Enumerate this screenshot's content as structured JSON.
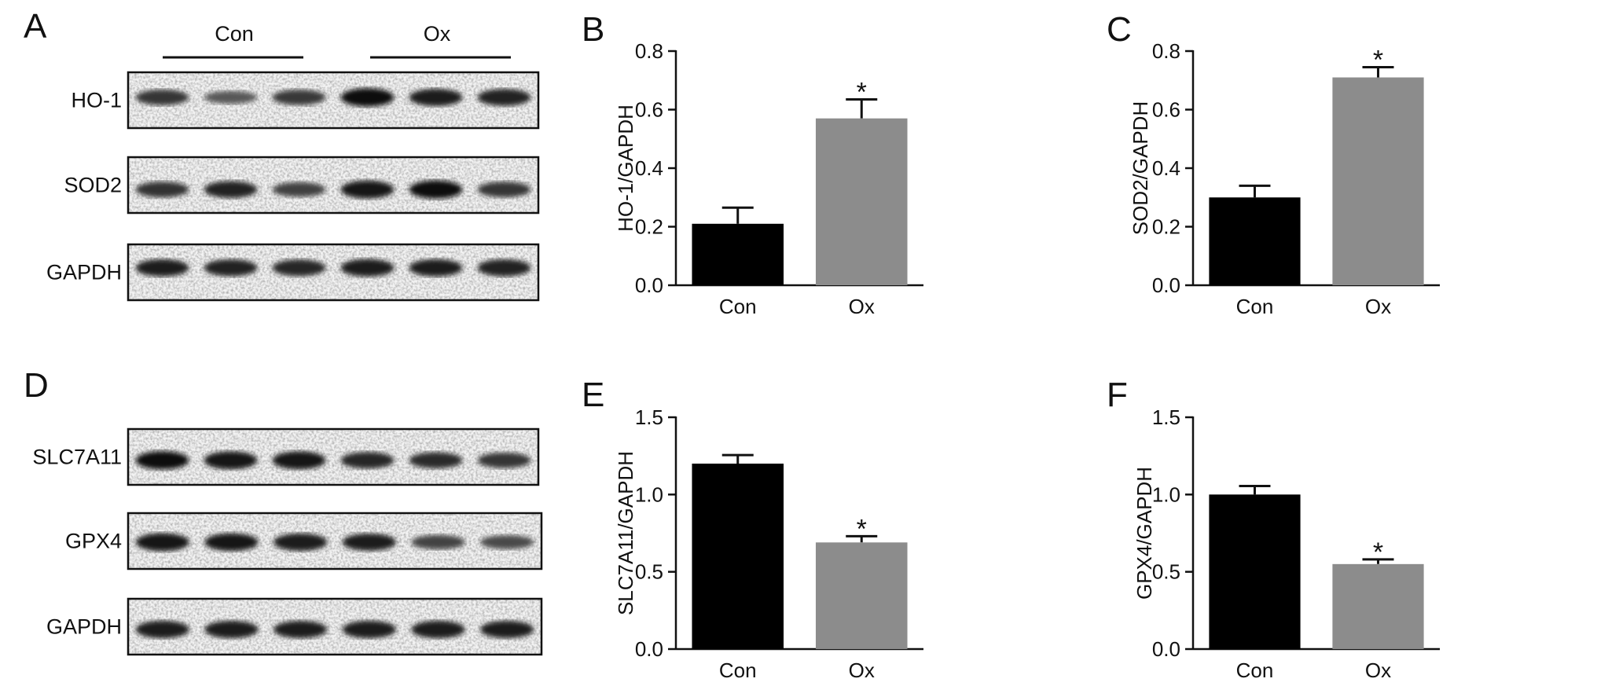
{
  "panels": {
    "A": {
      "letter": "A",
      "groups": [
        "Con",
        "Ox"
      ],
      "rows": [
        {
          "label": "HO-1",
          "intensity": [
            0.7,
            0.45,
            0.68,
            0.95,
            0.85,
            0.82
          ]
        },
        {
          "label": "SOD2",
          "intensity": [
            0.72,
            0.82,
            0.62,
            0.92,
            0.95,
            0.7
          ]
        },
        {
          "label": "GAPDH",
          "intensity": [
            0.85,
            0.82,
            0.8,
            0.88,
            0.85,
            0.84
          ]
        }
      ]
    },
    "D": {
      "letter": "D",
      "rows": [
        {
          "label": "SLC7A11",
          "intensity": [
            0.95,
            0.92,
            0.92,
            0.8,
            0.76,
            0.7
          ]
        },
        {
          "label": "GPX4",
          "intensity": [
            0.92,
            0.9,
            0.88,
            0.85,
            0.6,
            0.55
          ]
        },
        {
          "label": "GAPDH",
          "intensity": [
            0.88,
            0.88,
            0.86,
            0.88,
            0.88,
            0.86
          ]
        }
      ]
    }
  },
  "chart_data": [
    {
      "panel": "B",
      "letter": "B",
      "type": "bar",
      "categories": [
        "Con",
        "Ox"
      ],
      "values": [
        0.21,
        0.57
      ],
      "errors": [
        0.055,
        0.065
      ],
      "significance": [
        "",
        "*"
      ],
      "ylabel": "HO-1/GAPDH",
      "ylim": [
        0,
        0.8
      ],
      "yticks": [
        0.0,
        0.2,
        0.4,
        0.6,
        0.8
      ],
      "ytick_labels": [
        "0.0",
        "0.2",
        "0.4",
        "0.6",
        "0.8"
      ],
      "colors": [
        "#000000",
        "#8c8c8c"
      ]
    },
    {
      "panel": "C",
      "letter": "C",
      "type": "bar",
      "categories": [
        "Con",
        "Ox"
      ],
      "values": [
        0.3,
        0.71
      ],
      "errors": [
        0.04,
        0.035
      ],
      "significance": [
        "",
        "*"
      ],
      "ylabel": "SOD2/GAPDH",
      "ylim": [
        0,
        0.8
      ],
      "yticks": [
        0.0,
        0.2,
        0.4,
        0.6,
        0.8
      ],
      "ytick_labels": [
        "0.0",
        "0.2",
        "0.4",
        "0.6",
        "0.8"
      ],
      "colors": [
        "#000000",
        "#8c8c8c"
      ]
    },
    {
      "panel": "E",
      "letter": "E",
      "type": "bar",
      "categories": [
        "Con",
        "Ox"
      ],
      "values": [
        1.2,
        0.69
      ],
      "errors": [
        0.055,
        0.04
      ],
      "significance": [
        "",
        "*"
      ],
      "ylabel": "SLC7A11/GAPDH",
      "ylim": [
        0,
        1.5
      ],
      "yticks": [
        0.0,
        0.5,
        1.0,
        1.5
      ],
      "ytick_labels": [
        "0.0",
        "0.5",
        "1.0",
        "1.5"
      ],
      "colors": [
        "#000000",
        "#8c8c8c"
      ]
    },
    {
      "panel": "F",
      "letter": "F",
      "type": "bar",
      "categories": [
        "Con",
        "Ox"
      ],
      "values": [
        1.0,
        0.55
      ],
      "errors": [
        0.055,
        0.03
      ],
      "significance": [
        "",
        "*"
      ],
      "ylabel": "GPX4/GAPDH",
      "ylim": [
        0,
        1.5
      ],
      "yticks": [
        0.0,
        0.5,
        1.0,
        1.5
      ],
      "ytick_labels": [
        "0.0",
        "0.5",
        "1.0",
        "1.5"
      ],
      "colors": [
        "#000000",
        "#8c8c8c"
      ]
    }
  ]
}
